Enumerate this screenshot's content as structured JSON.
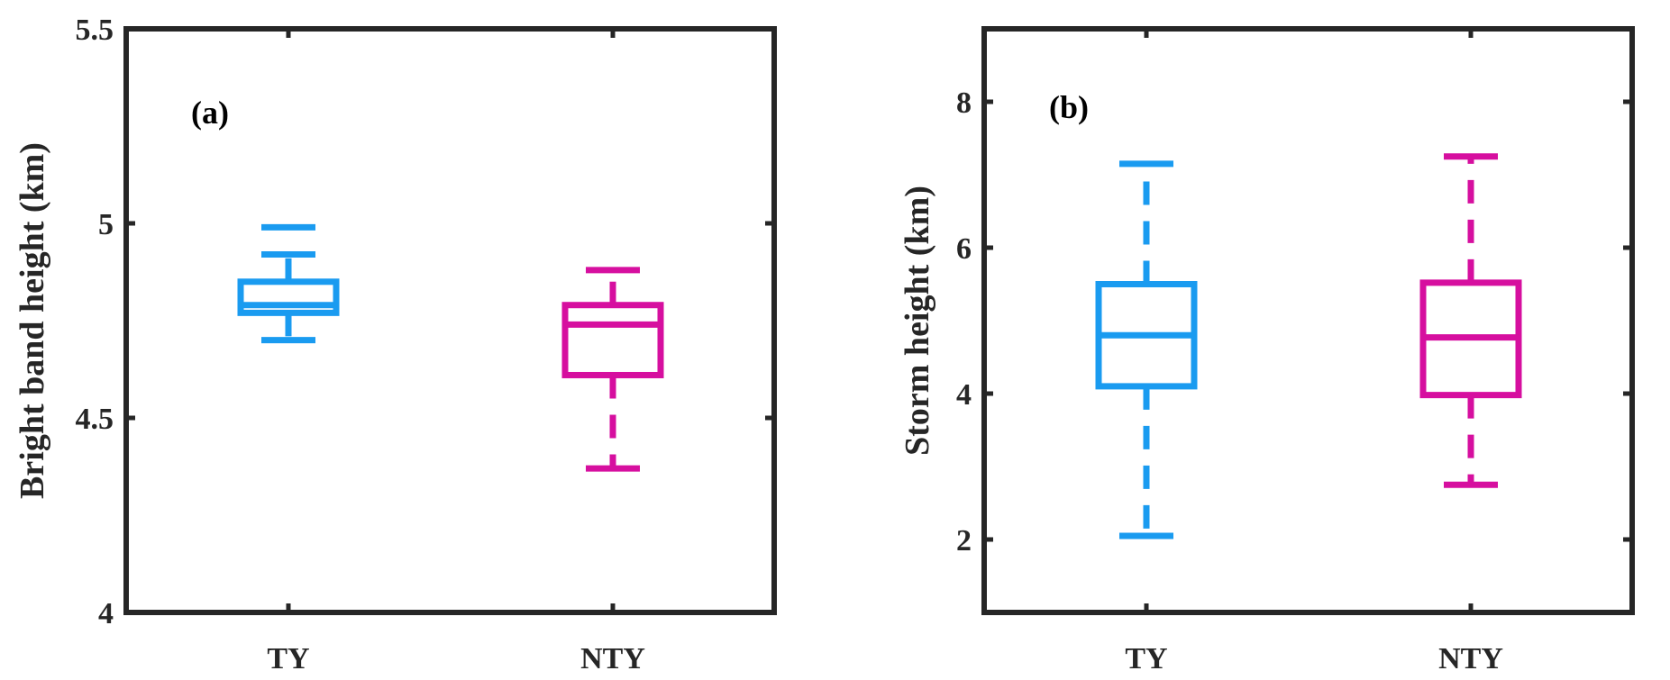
{
  "colors": {
    "axis": "#262626",
    "TY": "#1a9bf0",
    "NTY": "#d60f9f"
  },
  "chart_data": [
    {
      "type": "box",
      "panel_label": "(a)",
      "ylabel": "Bright band height (km)",
      "ylim": [
        4,
        5.5
      ],
      "yticks": [
        4,
        4.5,
        5,
        5.5
      ],
      "ytick_labels": [
        "4",
        "4.5",
        "5",
        "5.5"
      ],
      "categories": [
        "TY",
        "NTY"
      ],
      "grid": false,
      "boxes": [
        {
          "category": "TY",
          "whisker_low": 4.7,
          "q1": 4.77,
          "median": 4.79,
          "q3": 4.85,
          "whisker_high": 4.92,
          "outliers": [
            4.99
          ]
        },
        {
          "category": "NTY",
          "whisker_low": 4.37,
          "q1": 4.61,
          "median": 4.74,
          "q3": 4.79,
          "whisker_high": 4.88,
          "outliers": []
        }
      ]
    },
    {
      "type": "box",
      "panel_label": "(b)",
      "ylabel": "Storm height (km)",
      "ylim": [
        1,
        9
      ],
      "yticks": [
        2,
        4,
        6,
        8
      ],
      "ytick_labels": [
        "2",
        "4",
        "6",
        "8"
      ],
      "categories": [
        "TY",
        "NTY"
      ],
      "grid": false,
      "boxes": [
        {
          "category": "TY",
          "whisker_low": 2.05,
          "q1": 4.1,
          "median": 4.8,
          "q3": 5.5,
          "whisker_high": 7.15,
          "outliers": []
        },
        {
          "category": "NTY",
          "whisker_low": 2.75,
          "q1": 3.98,
          "median": 4.77,
          "q3": 5.52,
          "whisker_high": 7.25,
          "outliers": []
        }
      ]
    }
  ]
}
